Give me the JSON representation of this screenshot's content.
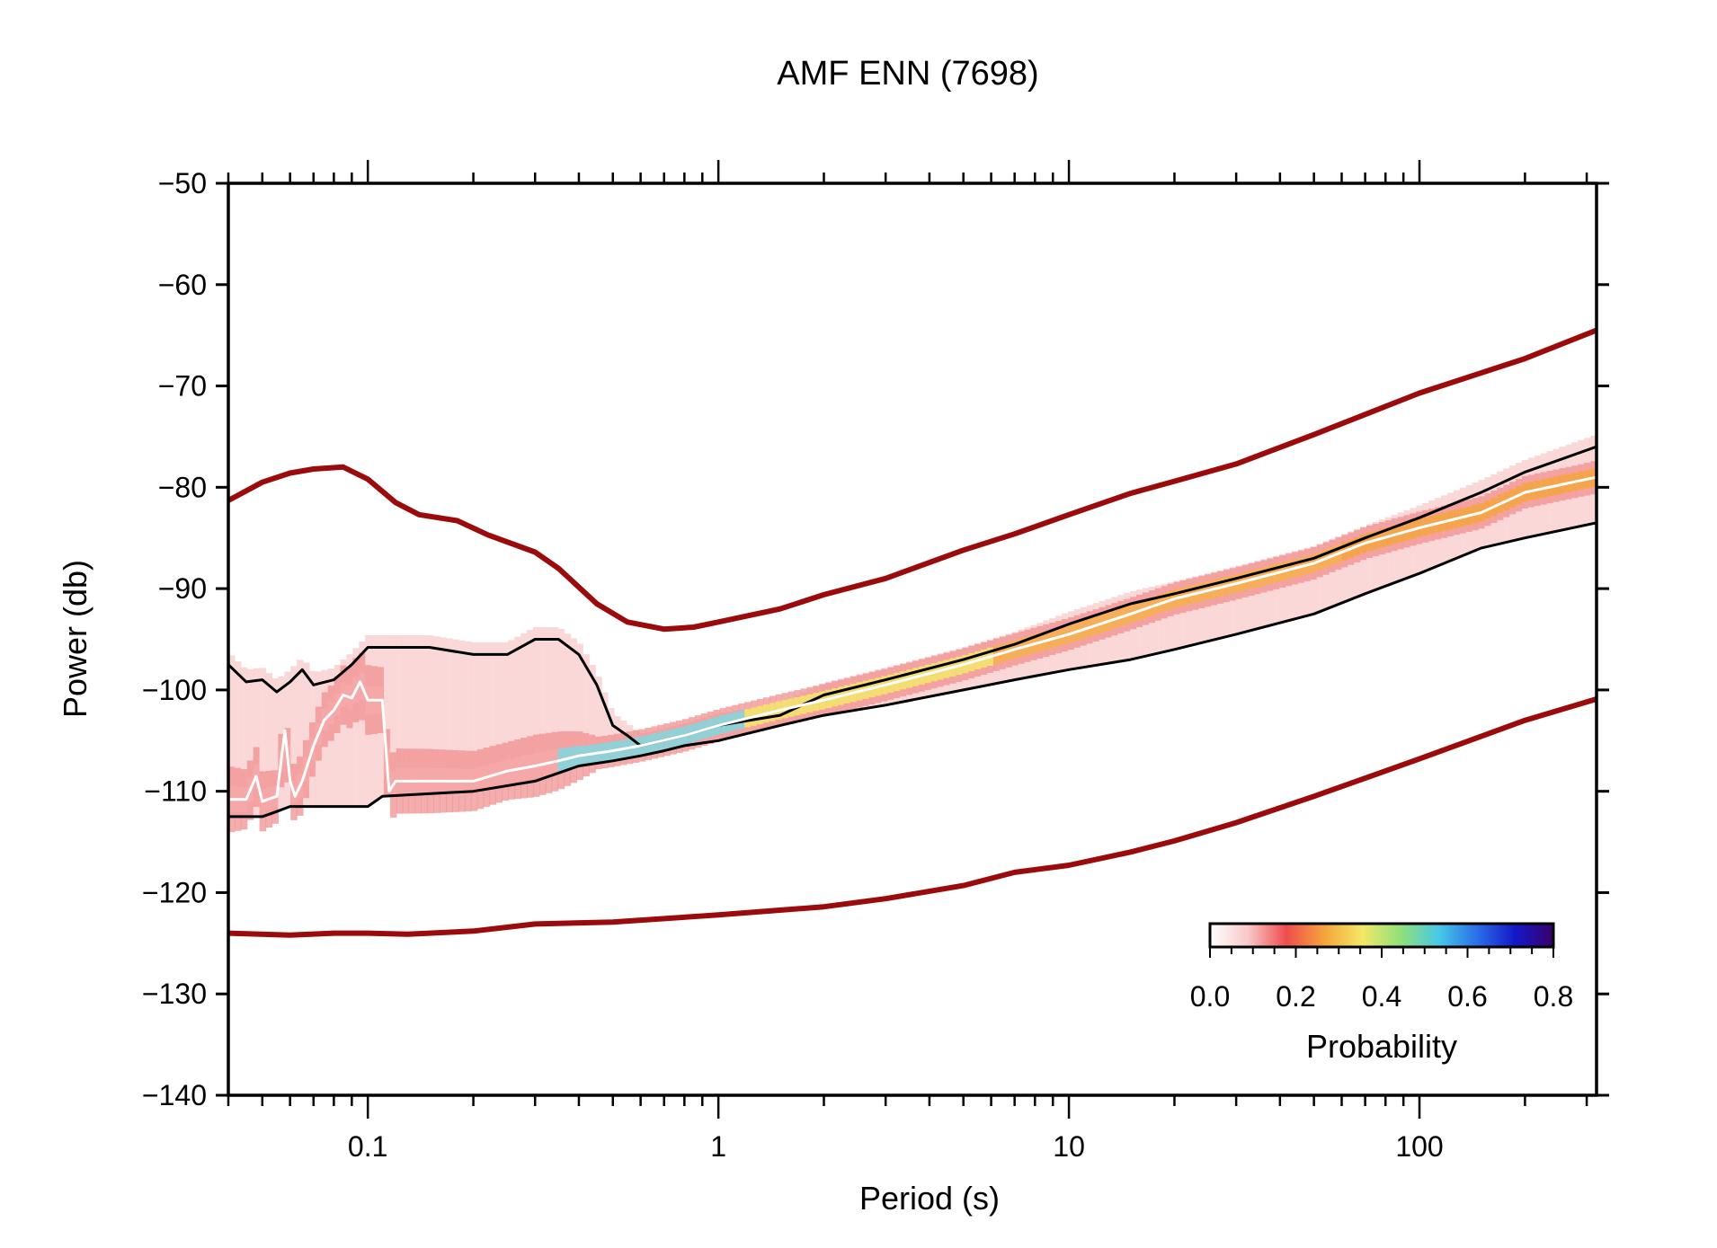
{
  "chart_data": {
    "type": "line",
    "title": "AMF ENN (7698)",
    "xlabel": "Period (s)",
    "ylabel": "Power (db)",
    "xscale": "log",
    "xlim": [
      0.04,
      320
    ],
    "ylim": [
      -140,
      -50
    ],
    "x_tick_labels": [
      {
        "value": 0.1,
        "label": "0.1"
      },
      {
        "value": 1,
        "label": "1"
      },
      {
        "value": 10,
        "label": "10"
      },
      {
        "value": 100,
        "label": "100"
      }
    ],
    "y_tick_labels": [
      {
        "value": -50,
        "label": "−50"
      },
      {
        "value": -60,
        "label": "−60"
      },
      {
        "value": -70,
        "label": "−70"
      },
      {
        "value": -80,
        "label": "−80"
      },
      {
        "value": -90,
        "label": "−90"
      },
      {
        "value": -100,
        "label": "−100"
      },
      {
        "value": -110,
        "label": "−110"
      },
      {
        "value": -120,
        "label": "−120"
      },
      {
        "value": -130,
        "label": "−130"
      },
      {
        "value": -140,
        "label": "−140"
      }
    ],
    "series": [
      {
        "role": "new-high-noise-model",
        "color": "#9b0b0b",
        "points": [
          [
            0.04,
            -81.3
          ],
          [
            0.05,
            -79.5
          ],
          [
            0.06,
            -78.6
          ],
          [
            0.07,
            -78.2
          ],
          [
            0.085,
            -78.0
          ],
          [
            0.1,
            -79.2
          ],
          [
            0.12,
            -81.5
          ],
          [
            0.14,
            -82.7
          ],
          [
            0.18,
            -83.3
          ],
          [
            0.22,
            -84.7
          ],
          [
            0.3,
            -86.4
          ],
          [
            0.35,
            -88.0
          ],
          [
            0.45,
            -91.5
          ],
          [
            0.55,
            -93.3
          ],
          [
            0.7,
            -94.0
          ],
          [
            0.85,
            -93.8
          ],
          [
            1.0,
            -93.3
          ],
          [
            1.5,
            -92.0
          ],
          [
            2.0,
            -90.6
          ],
          [
            3.0,
            -89.0
          ],
          [
            5.0,
            -86.2
          ],
          [
            7.0,
            -84.6
          ],
          [
            10.0,
            -82.7
          ],
          [
            15.0,
            -80.6
          ],
          [
            20.0,
            -79.4
          ],
          [
            30.0,
            -77.7
          ],
          [
            50.0,
            -74.8
          ],
          [
            100.0,
            -70.7
          ],
          [
            200.0,
            -67.3
          ],
          [
            320.0,
            -64.5
          ]
        ]
      },
      {
        "role": "new-low-noise-model",
        "color": "#9b0b0b",
        "points": [
          [
            0.04,
            -124.0
          ],
          [
            0.06,
            -124.2
          ],
          [
            0.08,
            -124.0
          ],
          [
            0.1,
            -124.0
          ],
          [
            0.13,
            -124.1
          ],
          [
            0.2,
            -123.8
          ],
          [
            0.3,
            -123.1
          ],
          [
            0.5,
            -122.9
          ],
          [
            1.0,
            -122.2
          ],
          [
            2.0,
            -121.4
          ],
          [
            3.0,
            -120.6
          ],
          [
            5.0,
            -119.3
          ],
          [
            7.0,
            -118.0
          ],
          [
            10.0,
            -117.3
          ],
          [
            15.0,
            -116.0
          ],
          [
            20.0,
            -114.9
          ],
          [
            30.0,
            -113.1
          ],
          [
            50.0,
            -110.5
          ],
          [
            100.0,
            -106.8
          ],
          [
            200.0,
            -103.0
          ],
          [
            320.0,
            -100.9
          ]
        ]
      },
      {
        "role": "upper-percentile",
        "color": "#000000",
        "points": [
          [
            0.04,
            -97.5
          ],
          [
            0.045,
            -99.2
          ],
          [
            0.05,
            -99.0
          ],
          [
            0.055,
            -100.2
          ],
          [
            0.06,
            -99.2
          ],
          [
            0.065,
            -98.0
          ],
          [
            0.07,
            -99.5
          ],
          [
            0.08,
            -99.0
          ],
          [
            0.09,
            -97.5
          ],
          [
            0.1,
            -95.8
          ],
          [
            0.15,
            -95.8
          ],
          [
            0.2,
            -96.5
          ],
          [
            0.25,
            -96.5
          ],
          [
            0.3,
            -95.0
          ],
          [
            0.35,
            -95.0
          ],
          [
            0.4,
            -96.5
          ],
          [
            0.45,
            -99.5
          ],
          [
            0.5,
            -103.5
          ],
          [
            0.55,
            -104.5
          ],
          [
            0.6,
            -105.5
          ],
          [
            0.8,
            -104.5
          ],
          [
            1.0,
            -103.5
          ],
          [
            1.5,
            -102.5
          ],
          [
            2.0,
            -100.5
          ],
          [
            3.0,
            -99.0
          ],
          [
            5.0,
            -97.0
          ],
          [
            7.0,
            -95.5
          ],
          [
            10.0,
            -93.5
          ],
          [
            15.0,
            -91.5
          ],
          [
            20.0,
            -90.5
          ],
          [
            30.0,
            -89.0
          ],
          [
            50.0,
            -87.0
          ],
          [
            70.0,
            -85.0
          ],
          [
            100.0,
            -83.0
          ],
          [
            150.0,
            -80.5
          ],
          [
            200.0,
            -78.5
          ],
          [
            320.0,
            -76.0
          ]
        ]
      },
      {
        "role": "lower-percentile",
        "color": "#000000",
        "points": [
          [
            0.04,
            -112.5
          ],
          [
            0.05,
            -112.5
          ],
          [
            0.055,
            -112.0
          ],
          [
            0.06,
            -111.5
          ],
          [
            0.1,
            -111.5
          ],
          [
            0.11,
            -110.5
          ],
          [
            0.2,
            -110.0
          ],
          [
            0.3,
            -109.0
          ],
          [
            0.4,
            -107.5
          ],
          [
            0.5,
            -107.0
          ],
          [
            0.6,
            -106.5
          ],
          [
            0.7,
            -106.0
          ],
          [
            0.8,
            -105.5
          ],
          [
            1.0,
            -105.0
          ],
          [
            1.5,
            -103.5
          ],
          [
            2.0,
            -102.5
          ],
          [
            3.0,
            -101.5
          ],
          [
            5.0,
            -100.0
          ],
          [
            7.0,
            -99.0
          ],
          [
            10.0,
            -98.0
          ],
          [
            15.0,
            -97.0
          ],
          [
            20.0,
            -96.0
          ],
          [
            30.0,
            -94.5
          ],
          [
            50.0,
            -92.5
          ],
          [
            70.0,
            -90.5
          ],
          [
            100.0,
            -88.5
          ],
          [
            150.0,
            -86.0
          ],
          [
            200.0,
            -85.0
          ],
          [
            320.0,
            -83.5
          ]
        ]
      },
      {
        "role": "mode",
        "color": "#ffffff",
        "points": [
          [
            0.04,
            -110.8
          ],
          [
            0.045,
            -110.8
          ],
          [
            0.048,
            -108.5
          ],
          [
            0.05,
            -111.0
          ],
          [
            0.055,
            -110.5
          ],
          [
            0.058,
            -104.0
          ],
          [
            0.06,
            -109.0
          ],
          [
            0.062,
            -110.5
          ],
          [
            0.065,
            -109.0
          ],
          [
            0.07,
            -105.5
          ],
          [
            0.075,
            -103.0
          ],
          [
            0.08,
            -102.0
          ],
          [
            0.085,
            -100.5
          ],
          [
            0.09,
            -100.8
          ],
          [
            0.095,
            -99.2
          ],
          [
            0.1,
            -101.0
          ],
          [
            0.11,
            -101.0
          ],
          [
            0.115,
            -110.0
          ],
          [
            0.12,
            -109.0
          ],
          [
            0.2,
            -109.0
          ],
          [
            0.25,
            -108.0
          ],
          [
            0.3,
            -107.5
          ],
          [
            0.35,
            -107.0
          ],
          [
            0.4,
            -106.5
          ],
          [
            0.5,
            -106.0
          ],
          [
            0.6,
            -105.5
          ],
          [
            0.8,
            -104.5
          ],
          [
            1.0,
            -103.5
          ],
          [
            1.5,
            -102.0
          ],
          [
            2.0,
            -101.0
          ],
          [
            3.0,
            -99.5
          ],
          [
            5.0,
            -97.5
          ],
          [
            7.0,
            -96.0
          ],
          [
            10.0,
            -94.5
          ],
          [
            15.0,
            -92.5
          ],
          [
            20.0,
            -91.0
          ],
          [
            30.0,
            -89.5
          ],
          [
            50.0,
            -87.5
          ],
          [
            70.0,
            -85.5
          ],
          [
            100.0,
            -84.0
          ],
          [
            150.0,
            -82.5
          ],
          [
            200.0,
            -80.5
          ],
          [
            320.0,
            -79.0
          ]
        ]
      }
    ],
    "colorbar": {
      "label": "Probability",
      "range": [
        0.0,
        0.8
      ],
      "tick_labels": [
        {
          "value": 0.0,
          "label": "0.0"
        },
        {
          "value": 0.2,
          "label": "0.2"
        },
        {
          "value": 0.4,
          "label": "0.4"
        },
        {
          "value": 0.6,
          "label": "0.6"
        },
        {
          "value": 0.8,
          "label": "0.8"
        }
      ],
      "colors": [
        "#ffffff",
        "#f8c8c8",
        "#ef4d4d",
        "#f4a43c",
        "#f3e868",
        "#8fe07a",
        "#48c8e8",
        "#2a6ee8",
        "#1418c8",
        "#3a006a"
      ],
      "placement": "lower-right"
    },
    "grid": false
  }
}
